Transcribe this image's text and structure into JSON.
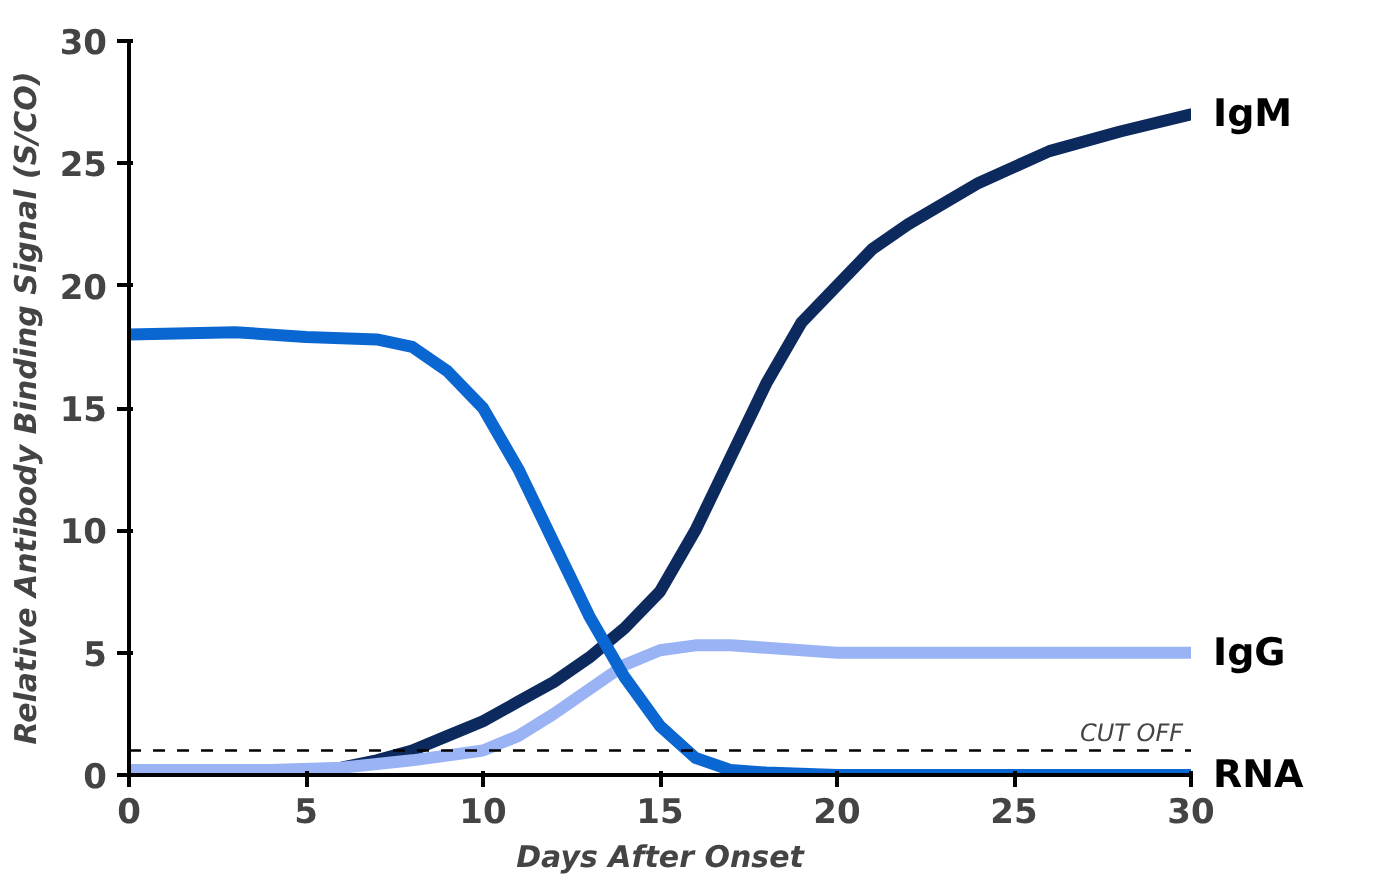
{
  "chart_data": {
    "type": "line",
    "xlabel": "Days After Onset",
    "ylabel": "Relative Antibody Binding Signal (S/CO)",
    "xlim": [
      0,
      30
    ],
    "xticks": [
      0,
      5,
      10,
      15,
      20,
      25,
      30
    ],
    "ylim": [
      0,
      30
    ],
    "yticks": [
      0,
      5,
      10,
      15,
      20,
      25,
      30
    ],
    "grid": false,
    "marker": "none",
    "line_style": "solid",
    "series": [
      {
        "name": "IgM",
        "color": "#0c2a5e",
        "x": [
          5,
          6,
          7,
          8,
          9,
          10,
          11,
          12,
          13,
          14,
          15,
          16,
          17,
          18,
          19,
          20,
          21,
          22,
          24,
          26,
          28,
          30
        ],
        "values": [
          0.1,
          0.3,
          0.6,
          1,
          1.6,
          2.2,
          3,
          3.8,
          4.8,
          6,
          7.5,
          10,
          13,
          16,
          18.5,
          20,
          21.5,
          22.5,
          24.2,
          25.5,
          26.3,
          27
        ]
      },
      {
        "name": "IgG",
        "color": "#99b3f5",
        "x": [
          0,
          4,
          6,
          8,
          10,
          11,
          12,
          13,
          14,
          15,
          16,
          17,
          18,
          20,
          25,
          30
        ],
        "values": [
          0.2,
          0.2,
          0.3,
          0.6,
          1,
          1.6,
          2.5,
          3.5,
          4.5,
          5.1,
          5.3,
          5.3,
          5.2,
          5,
          5,
          5
        ]
      },
      {
        "name": "RNA",
        "color": "#0a66d0",
        "x": [
          0,
          3,
          5,
          7,
          8,
          9,
          10,
          11,
          12,
          13,
          14,
          15,
          16,
          17,
          18,
          20,
          25,
          30
        ],
        "values": [
          18,
          18.1,
          17.9,
          17.8,
          17.5,
          16.5,
          15,
          12.5,
          9.5,
          6.5,
          4,
          2,
          0.7,
          0.2,
          0.1,
          0,
          0,
          0
        ]
      }
    ],
    "ref_lines": [
      {
        "axis": "y",
        "value": 1,
        "label": "CUT OFF",
        "color": "#000000",
        "line_style": "dashed"
      }
    ]
  }
}
